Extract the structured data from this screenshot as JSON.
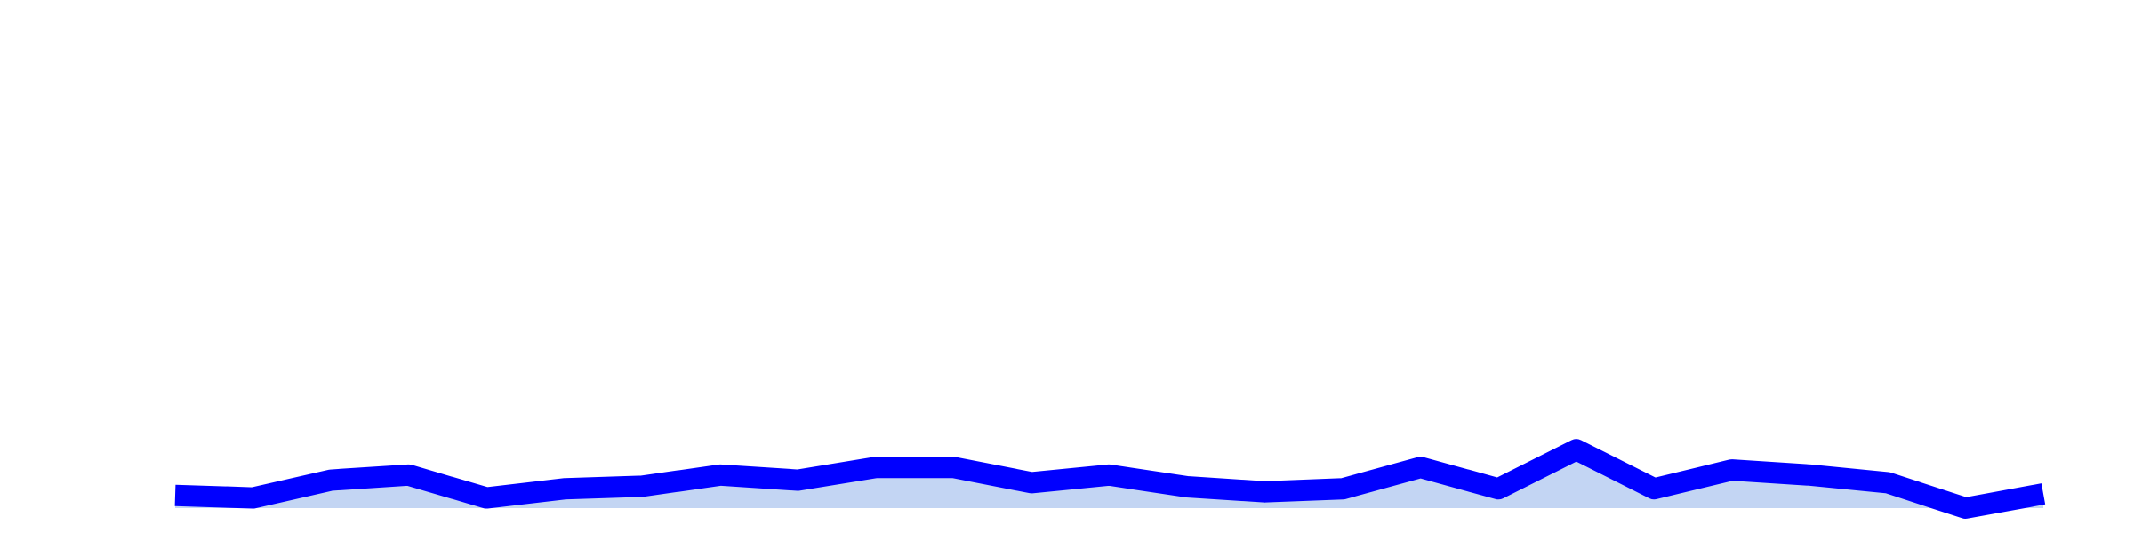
{
  "chart_data": {
    "type": "area",
    "title": "",
    "xlabel": "",
    "ylabel": "",
    "grid": false,
    "legend": "none",
    "x": [
      1,
      2,
      3,
      4,
      5,
      6,
      7,
      8,
      9,
      10,
      11,
      12,
      13,
      14,
      15,
      16,
      17,
      18,
      19,
      20,
      21,
      22,
      23,
      24,
      25
    ],
    "ylim": [
      0,
      10
    ],
    "series": [
      {
        "values": [
          0.25,
          0.2,
          0.55,
          0.65,
          0.2,
          0.38,
          0.43,
          0.65,
          0.55,
          0.8,
          0.8,
          0.5,
          0.65,
          0.42,
          0.32,
          0.38,
          0.8,
          0.38,
          1.15,
          0.38,
          0.75,
          0.65,
          0.5,
          0.0,
          0.28
        ],
        "line_color": "#0000ff",
        "fill_color": "#c3d5f3"
      }
    ]
  }
}
